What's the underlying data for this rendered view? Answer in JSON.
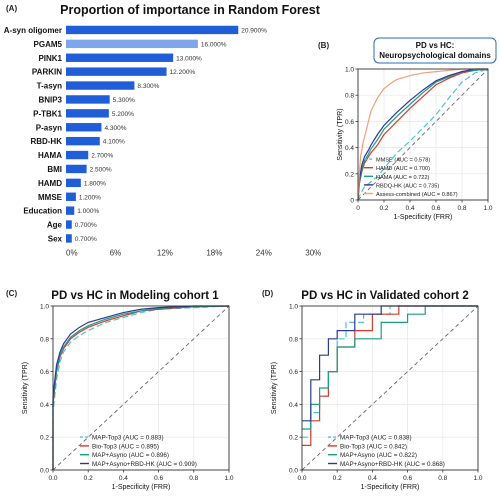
{
  "panels": {
    "a": {
      "letter": "(A)",
      "title": "Proportion of importance in Random Forest"
    },
    "b": {
      "letter": "(B)",
      "title_line1": "PD vs HC:",
      "title_line2": "Neuropsychological domains"
    },
    "c": {
      "letter": "(C)",
      "title": "PD vs HC in Modeling cohort 1"
    },
    "d": {
      "letter": "(D)",
      "title": "PD vs HC in Validated cohort 2"
    }
  },
  "colors": {
    "bar_primary": "#1f5ed6",
    "bar_highlight": "#7ea6ea",
    "diagonal": "#666666",
    "grid": "#e6e6e6"
  },
  "chart_data": [
    {
      "id": "a",
      "type": "bar",
      "orientation": "horizontal",
      "title": "Proportion of importance in Random Forest",
      "categories": [
        "A-syn oligomer",
        "PGAM5",
        "PINK1",
        "PARKIN",
        "T-asyn",
        "BNIP3",
        "P-TBK1",
        "P-asyn",
        "RBD-HK",
        "HAMA",
        "BMI",
        "HAMD",
        "MMSE",
        "Education",
        "Age",
        "Sex"
      ],
      "values": [
        20.9,
        16.0,
        13.0,
        12.2,
        8.3,
        5.3,
        5.2,
        4.3,
        4.1,
        2.7,
        2.5,
        1.8,
        1.2,
        1.0,
        0.7,
        0.7
      ],
      "value_labels": [
        "20.900%",
        "16.000%",
        "13.000%",
        "12.200%",
        "8.300%",
        "5.300%",
        "5.200%",
        "4.300%",
        "4.100%",
        "2.700%",
        "2.500%",
        "1.800%",
        "1.200%",
        "1.000%",
        "0.700%",
        "0.700%"
      ],
      "highlight_index": 1,
      "xlim": [
        0,
        33
      ],
      "xticks": [
        0,
        6,
        12,
        18,
        24,
        30
      ],
      "xtick_labels": [
        "0%",
        "6%",
        "12%",
        "18%",
        "24%",
        "30%"
      ]
    },
    {
      "id": "b",
      "type": "line",
      "title": "PD vs HC: Neuropsychological domains",
      "xlabel": "1-Specificity (FRR)",
      "ylabel": "Sensitivity (TPR)",
      "xlim": [
        0,
        1
      ],
      "ylim": [
        0,
        1
      ],
      "ticks": [
        0,
        0.2,
        0.4,
        0.6,
        0.8,
        1
      ],
      "tick_labels": [
        "0",
        "0.2",
        "0.4",
        "0.6",
        "0.8",
        "1.0"
      ],
      "ytick_labels": [
        "0",
        "0.2",
        "0.4",
        "0.6",
        "0.8",
        "1.0"
      ],
      "grid": true,
      "legend_position": "bottom-right",
      "series": [
        {
          "name": "MMSE (AUC = 0.578)",
          "color": "#4cc3d6",
          "dash": "6,3",
          "x": [
            0,
            0.02,
            0.05,
            0.1,
            0.15,
            0.2,
            0.25,
            0.3,
            0.4,
            0.5,
            0.6,
            0.7,
            0.8,
            0.9,
            1.0
          ],
          "y": [
            0,
            0.05,
            0.1,
            0.14,
            0.18,
            0.24,
            0.3,
            0.36,
            0.45,
            0.55,
            0.65,
            0.78,
            0.9,
            0.97,
            1.0
          ]
        },
        {
          "name": "HAMD (AUC = 0.700)",
          "color": "#d93a2b",
          "dash": "",
          "x": [
            0,
            0.01,
            0.03,
            0.05,
            0.08,
            0.1,
            0.15,
            0.2,
            0.3,
            0.4,
            0.5,
            0.6,
            0.7,
            0.8,
            0.9,
            1.0
          ],
          "y": [
            0,
            0.12,
            0.22,
            0.28,
            0.33,
            0.36,
            0.42,
            0.5,
            0.6,
            0.7,
            0.79,
            0.88,
            0.93,
            0.97,
            0.99,
            1.0
          ]
        },
        {
          "name": "HAMA (AUC = 0.722)",
          "color": "#1a9e8a",
          "dash": "",
          "x": [
            0,
            0.01,
            0.03,
            0.05,
            0.08,
            0.1,
            0.15,
            0.2,
            0.3,
            0.4,
            0.5,
            0.6,
            0.7,
            0.8,
            0.9,
            1.0
          ],
          "y": [
            0,
            0.13,
            0.24,
            0.3,
            0.35,
            0.39,
            0.46,
            0.54,
            0.64,
            0.73,
            0.82,
            0.9,
            0.94,
            0.98,
            0.99,
            1.0
          ]
        },
        {
          "name": "RBDQ-HK (AUC = 0.735)",
          "color": "#2b3a8f",
          "dash": "",
          "x": [
            0,
            0.01,
            0.03,
            0.05,
            0.08,
            0.1,
            0.15,
            0.2,
            0.3,
            0.4,
            0.5,
            0.6,
            0.7,
            0.8,
            0.9,
            1.0
          ],
          "y": [
            0,
            0.15,
            0.27,
            0.33,
            0.38,
            0.42,
            0.5,
            0.57,
            0.67,
            0.76,
            0.84,
            0.91,
            0.95,
            0.98,
            1.0,
            1.0
          ]
        },
        {
          "name": "Assess-combined (AUC = 0.867)",
          "color": "#f0a07a",
          "dash": "",
          "x": [
            0,
            0.01,
            0.02,
            0.04,
            0.06,
            0.08,
            0.1,
            0.15,
            0.2,
            0.25,
            0.3,
            0.4,
            0.5,
            0.6,
            0.7,
            0.8,
            0.9,
            1.0
          ],
          "y": [
            0,
            0.2,
            0.33,
            0.44,
            0.52,
            0.6,
            0.68,
            0.78,
            0.85,
            0.89,
            0.92,
            0.95,
            0.97,
            0.98,
            0.99,
            1.0,
            1.0,
            1.0
          ]
        }
      ]
    },
    {
      "id": "c",
      "type": "line",
      "title": "PD vs HC in Modeling cohort 1",
      "xlabel": "1-Specificity (FRR)",
      "ylabel": "Sensitivity (TPR)",
      "xlim": [
        0,
        1
      ],
      "ylim": [
        0,
        1
      ],
      "ticks": [
        0,
        0.2,
        0.4,
        0.6,
        0.8,
        1
      ],
      "tick_labels": [
        "0.0",
        "0.2",
        "0.4",
        "0.6",
        "0.8",
        "1.0"
      ],
      "ytick_labels": [
        "0.0",
        "0.2",
        "0.4",
        "0.6",
        "0.8",
        "1.0"
      ],
      "grid": true,
      "legend_position": "bottom-right",
      "series": [
        {
          "name": "MAP-Top3 (AUC = 0.883)",
          "color": "#4cc3d6",
          "dash": "6,3",
          "x": [
            0,
            0.0,
            0.02,
            0.04,
            0.06,
            0.08,
            0.1,
            0.15,
            0.2,
            0.3,
            0.4,
            0.5,
            0.6,
            0.8,
            1.0
          ],
          "y": [
            0,
            0.35,
            0.55,
            0.66,
            0.72,
            0.75,
            0.78,
            0.82,
            0.85,
            0.9,
            0.93,
            0.96,
            0.98,
            0.99,
            1.0
          ]
        },
        {
          "name": "Bio-Top3 (AUC = 0.895)",
          "color": "#d93a2b",
          "dash": "",
          "x": [
            0,
            0.0,
            0.02,
            0.04,
            0.06,
            0.08,
            0.1,
            0.15,
            0.2,
            0.3,
            0.4,
            0.5,
            0.6,
            0.8,
            1.0
          ],
          "y": [
            0,
            0.4,
            0.6,
            0.69,
            0.74,
            0.77,
            0.8,
            0.84,
            0.87,
            0.91,
            0.94,
            0.97,
            0.98,
            0.995,
            1.0
          ]
        },
        {
          "name": "MAP+Asyno (AUC = 0.896)",
          "color": "#1a9e8a",
          "dash": "",
          "x": [
            0,
            0.0,
            0.02,
            0.04,
            0.06,
            0.08,
            0.1,
            0.15,
            0.2,
            0.3,
            0.4,
            0.5,
            0.6,
            0.8,
            1.0
          ],
          "y": [
            0,
            0.42,
            0.61,
            0.7,
            0.75,
            0.78,
            0.81,
            0.85,
            0.88,
            0.92,
            0.95,
            0.97,
            0.985,
            0.995,
            1.0
          ]
        },
        {
          "name": "MAP+Asyno+RBD-HK (AUC = 0.909)",
          "color": "#2b3a8f",
          "dash": "",
          "x": [
            0,
            0.0,
            0.02,
            0.04,
            0.06,
            0.08,
            0.1,
            0.15,
            0.2,
            0.3,
            0.4,
            0.5,
            0.6,
            0.8,
            1.0
          ],
          "y": [
            0,
            0.45,
            0.64,
            0.72,
            0.77,
            0.8,
            0.83,
            0.87,
            0.9,
            0.93,
            0.96,
            0.98,
            0.99,
            1.0,
            1.0
          ]
        }
      ]
    },
    {
      "id": "d",
      "type": "line",
      "title": "PD vs HC in Validated cohort 2",
      "xlabel": "1-Specificity (FRR)",
      "ylabel": "Sensitivity (TPR)",
      "xlim": [
        0,
        1
      ],
      "ylim": [
        0,
        1
      ],
      "ticks": [
        0,
        0.2,
        0.4,
        0.6,
        0.8,
        1
      ],
      "tick_labels": [
        "0.0",
        "0.2",
        "0.4",
        "0.6",
        "0.8",
        "1.0"
      ],
      "ytick_labels": [
        "0.0",
        "0.2",
        "0.4",
        "0.6",
        "0.8",
        "1.0"
      ],
      "grid": true,
      "legend_position": "bottom-right",
      "series": [
        {
          "name": "MAP-Top3 (AUC = 0.838)",
          "color": "#4cc3d6",
          "dash": "6,3",
          "step": true,
          "x": [
            0,
            0.05,
            0.1,
            0.15,
            0.2,
            0.25,
            0.35,
            0.5,
            0.6,
            1.0
          ],
          "y": [
            0.2,
            0.35,
            0.45,
            0.6,
            0.8,
            0.9,
            0.95,
            1.0,
            1.0,
            1.0
          ]
        },
        {
          "name": "Bio-Top3 (AUC = 0.842)",
          "color": "#d93a2b",
          "dash": "",
          "step": true,
          "x": [
            0,
            0.05,
            0.1,
            0.15,
            0.2,
            0.3,
            0.4,
            0.55,
            1.0
          ],
          "y": [
            0.15,
            0.3,
            0.45,
            0.6,
            0.75,
            0.85,
            0.95,
            1.0,
            1.0
          ]
        },
        {
          "name": "MAP+Asyno (AUC = 0.822)",
          "color": "#1a9e8a",
          "dash": "",
          "step": true,
          "x": [
            0,
            0.05,
            0.1,
            0.15,
            0.2,
            0.3,
            0.45,
            0.6,
            0.7,
            1.0
          ],
          "y": [
            0.25,
            0.4,
            0.5,
            0.6,
            0.75,
            0.8,
            0.9,
            0.95,
            1.0,
            1.0
          ]
        },
        {
          "name": "MAP+Asyno+RBD-HK (AUC = 0.868)",
          "color": "#2b3a8f",
          "dash": "",
          "step": true,
          "x": [
            0,
            0.05,
            0.1,
            0.15,
            0.2,
            0.3,
            0.45,
            0.6,
            1.0
          ],
          "y": [
            0.3,
            0.55,
            0.7,
            0.8,
            0.85,
            0.95,
            1.0,
            1.0,
            1.0
          ]
        }
      ]
    }
  ]
}
